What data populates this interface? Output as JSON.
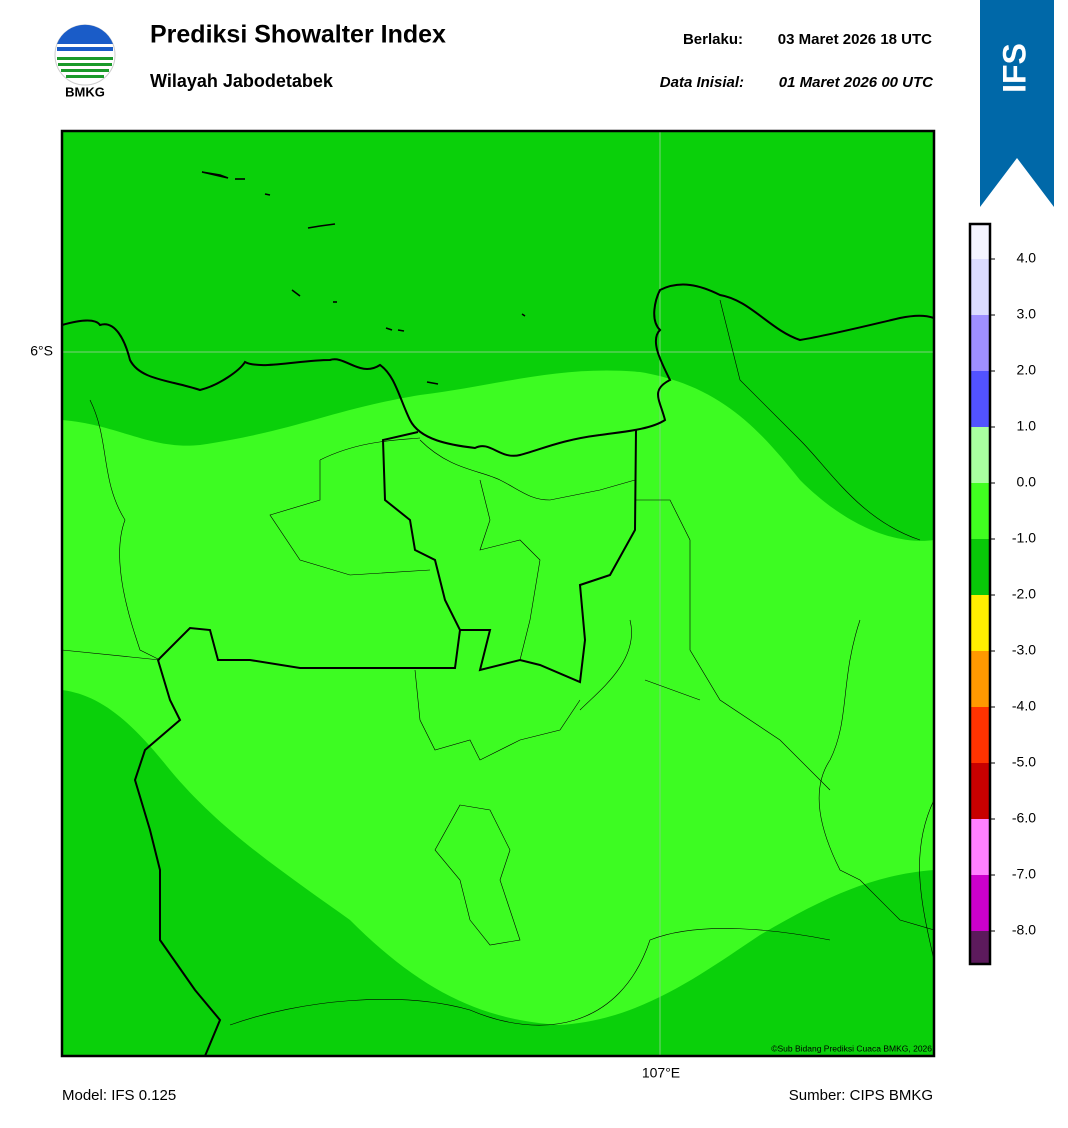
{
  "header": {
    "title": "Prediksi Showalter Index",
    "subtitle": "Wilayah Jabodetabek",
    "logo_text": "BMKG",
    "badge": "IFS",
    "valid_label": "Berlaku:",
    "valid": "03 Maret 2026 18 UTC",
    "init_label": "Data Inisial:",
    "init": "01 Maret 2026 00 UTC"
  },
  "map": {
    "lat_label": "6°S",
    "lon_label": "107°E",
    "credit": "©Sub Bidang Prediksi Cuaca BMKG, 2026"
  },
  "colorbar": {
    "ticks": [
      "4.0",
      "3.0",
      "2.0",
      "1.0",
      "0.0",
      "-1.0",
      "-2.0",
      "-3.0",
      "-4.0",
      "-5.0",
      "-6.0",
      "-7.0",
      "-8.0"
    ],
    "colors": [
      "#f4f4ff",
      "#dcdcff",
      "#9f8fff",
      "#5252ff",
      "#a8ffa0",
      "#40ff20",
      "#08c808",
      "#ffee00",
      "#ff9900",
      "#ff3300",
      "#c80000",
      "#ff80ff",
      "#cc00cc",
      "#5c1a5c"
    ]
  },
  "footer": {
    "model": "Model: IFS 0.125",
    "source": "Sumber: CIPS BMKG"
  }
}
